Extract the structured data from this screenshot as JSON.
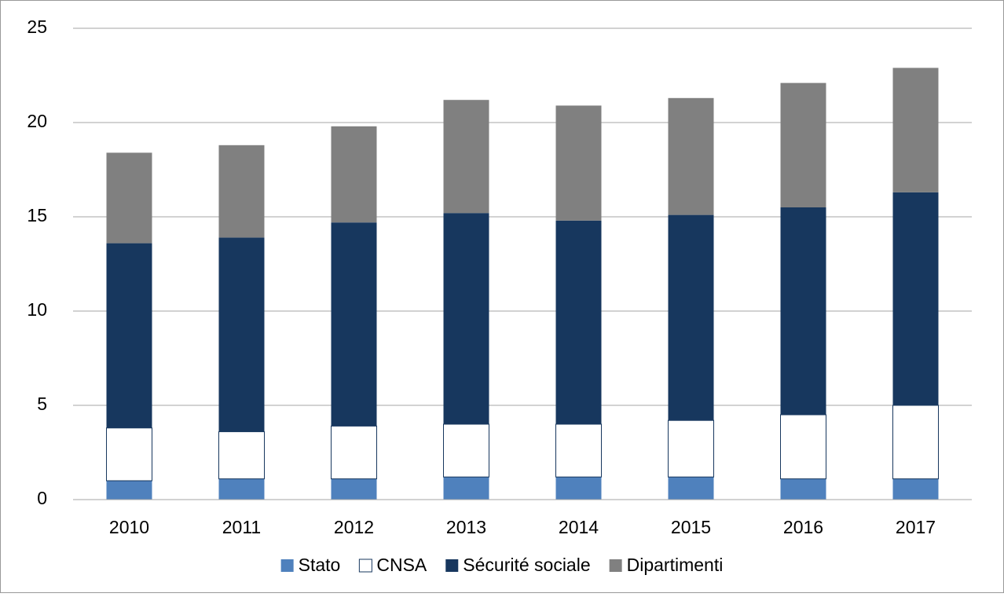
{
  "chart_data": {
    "type": "stacked-bar",
    "categories": [
      "2010",
      "2011",
      "2012",
      "2013",
      "2014",
      "2015",
      "2016",
      "2017"
    ],
    "series": [
      {
        "name": "Stato",
        "color": "#4f81bd",
        "values": [
          1.0,
          1.1,
          1.1,
          1.2,
          1.2,
          1.2,
          1.1,
          1.1
        ]
      },
      {
        "name": "CNSA",
        "color": "#ffffff",
        "values": [
          2.8,
          2.5,
          2.8,
          2.8,
          2.8,
          3.0,
          3.4,
          3.9
        ]
      },
      {
        "name": "Sécurité sociale",
        "color": "#17375e",
        "values": [
          9.8,
          10.3,
          10.8,
          11.2,
          10.8,
          10.9,
          11.0,
          11.3
        ]
      },
      {
        "name": "Dipartimenti",
        "color": "#808080",
        "values": [
          4.8,
          4.9,
          5.1,
          6.0,
          6.1,
          6.2,
          6.6,
          6.6
        ]
      }
    ],
    "ylim": [
      0,
      25
    ],
    "yticks": [
      0,
      5,
      10,
      15,
      20,
      25
    ],
    "grid": true,
    "legend": "bottom"
  }
}
